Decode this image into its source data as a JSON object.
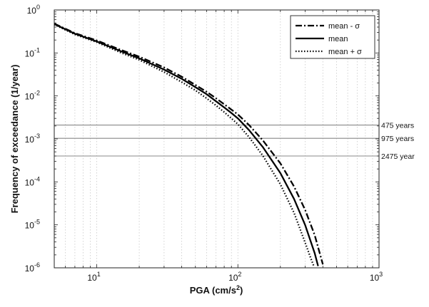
{
  "chart_data": {
    "type": "line",
    "title": "",
    "xlabel": "PGA (cm/s",
    "xlabel_sup": "2",
    "xlabel_end": ")",
    "ylabel": "Frequency of exceedance (1/year)",
    "x_scale": "log",
    "y_scale": "log",
    "xlim": [
      5,
      1000
    ],
    "ylim": [
      1e-06,
      1
    ],
    "grid": "x-minor-dotted",
    "legend_position": "top-right",
    "x_ticks": [
      {
        "value": 10,
        "base": "10",
        "exp": "1"
      },
      {
        "value": 100,
        "base": "10",
        "exp": "2"
      },
      {
        "value": 1000,
        "base": "10",
        "exp": "3"
      }
    ],
    "y_ticks": [
      {
        "value": 1e-06,
        "base": "10",
        "exp": "-6"
      },
      {
        "value": 1e-05,
        "base": "10",
        "exp": "-5"
      },
      {
        "value": 0.0001,
        "base": "10",
        "exp": "-4"
      },
      {
        "value": 0.001,
        "base": "10",
        "exp": "-3"
      },
      {
        "value": 0.01,
        "base": "10",
        "exp": "-2"
      },
      {
        "value": 0.1,
        "base": "10",
        "exp": "-1"
      },
      {
        "value": 1,
        "base": "10",
        "exp": "0"
      }
    ],
    "reference_lines": [
      {
        "y": 0.0021,
        "label": "475 years"
      },
      {
        "y": 0.00103,
        "label": "975 years"
      },
      {
        "y": 0.0004,
        "label": "2475 year"
      }
    ],
    "series": [
      {
        "name": "mean - σ",
        "style": "dashdot",
        "x": [
          5,
          7,
          10,
          15,
          20,
          30,
          40,
          50,
          60,
          70,
          80,
          90,
          100,
          120,
          150,
          200,
          250,
          300,
          350,
          400
        ],
        "y": [
          0.48,
          0.29,
          0.195,
          0.116,
          0.082,
          0.046,
          0.028,
          0.018,
          0.0125,
          0.0088,
          0.0064,
          0.0048,
          0.0037,
          0.0021,
          0.00093,
          0.00027,
          7.8e-05,
          2.2e-05,
          5.8e-06,
          1.2e-06
        ]
      },
      {
        "name": "mean",
        "style": "solid",
        "x": [
          5,
          7,
          10,
          15,
          20,
          30,
          40,
          50,
          60,
          70,
          80,
          90,
          100,
          120,
          150,
          200,
          250,
          300,
          350,
          370
        ],
        "y": [
          0.47,
          0.28,
          0.185,
          0.108,
          0.075,
          0.041,
          0.025,
          0.016,
          0.011,
          0.0075,
          0.0054,
          0.004,
          0.003,
          0.0016,
          0.00065,
          0.00016,
          4e-05,
          9.8e-06,
          2.2e-06,
          1.1e-06
        ]
      },
      {
        "name": "mean + σ",
        "style": "dotted",
        "x": [
          5,
          7,
          10,
          15,
          20,
          30,
          40,
          50,
          60,
          70,
          80,
          90,
          100,
          120,
          150,
          200,
          250,
          300,
          330,
          345
        ],
        "y": [
          0.46,
          0.27,
          0.178,
          0.1,
          0.069,
          0.036,
          0.021,
          0.0135,
          0.0088,
          0.006,
          0.0042,
          0.003,
          0.0022,
          0.0011,
          0.00041,
          8.8e-05,
          1.9e-05,
          3.8e-06,
          1.6e-06,
          1.1e-06
        ]
      }
    ]
  }
}
